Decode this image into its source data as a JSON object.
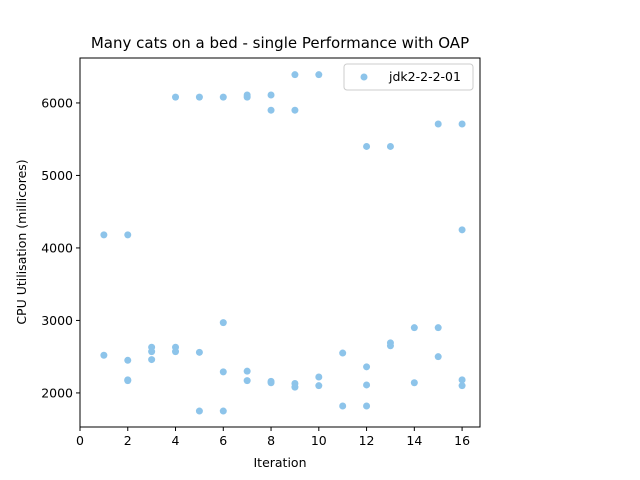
{
  "chart_data": {
    "type": "scatter",
    "title": "Many cats on a bed - single Performance with OAP",
    "xlabel": "Iteration",
    "ylabel": "CPU Utilisation (millicores)",
    "xlim": [
      0,
      16.75
    ],
    "ylim": [
      1530,
      6620
    ],
    "xticks": [
      0,
      2,
      4,
      6,
      8,
      10,
      12,
      14,
      16
    ],
    "yticks": [
      2000,
      3000,
      4000,
      5000,
      6000
    ],
    "grid": false,
    "legend_position": "top-right",
    "series": [
      {
        "name": "jdk2-2-2-01",
        "color": "#8dc4ea",
        "points": [
          [
            1,
            4180
          ],
          [
            1,
            2520
          ],
          [
            2,
            4180
          ],
          [
            2,
            2450
          ],
          [
            2,
            2180
          ],
          [
            2,
            2170
          ],
          [
            3,
            2630
          ],
          [
            3,
            2570
          ],
          [
            3,
            2460
          ],
          [
            4,
            6080
          ],
          [
            4,
            2630
          ],
          [
            4,
            2570
          ],
          [
            5,
            6080
          ],
          [
            5,
            2560
          ],
          [
            5,
            1750
          ],
          [
            6,
            6080
          ],
          [
            6,
            2970
          ],
          [
            6,
            2290
          ],
          [
            6,
            1750
          ],
          [
            7,
            6110
          ],
          [
            7,
            6080
          ],
          [
            7,
            2300
          ],
          [
            7,
            2170
          ],
          [
            8,
            6110
          ],
          [
            8,
            5900
          ],
          [
            8,
            2160
          ],
          [
            8,
            2140
          ],
          [
            9,
            6390
          ],
          [
            9,
            5900
          ],
          [
            9,
            2130
          ],
          [
            9,
            2080
          ],
          [
            10,
            6390
          ],
          [
            10,
            2220
          ],
          [
            10,
            2100
          ],
          [
            11,
            2550
          ],
          [
            11,
            1820
          ],
          [
            12,
            5400
          ],
          [
            12,
            2360
          ],
          [
            12,
            2110
          ],
          [
            12,
            1820
          ],
          [
            13,
            5400
          ],
          [
            13,
            2690
          ],
          [
            13,
            2650
          ],
          [
            14,
            2900
          ],
          [
            14,
            2140
          ],
          [
            15,
            5710
          ],
          [
            15,
            2900
          ],
          [
            15,
            2500
          ],
          [
            16,
            5710
          ],
          [
            16,
            4250
          ],
          [
            16,
            2180
          ],
          [
            16,
            2100
          ]
        ]
      }
    ]
  }
}
